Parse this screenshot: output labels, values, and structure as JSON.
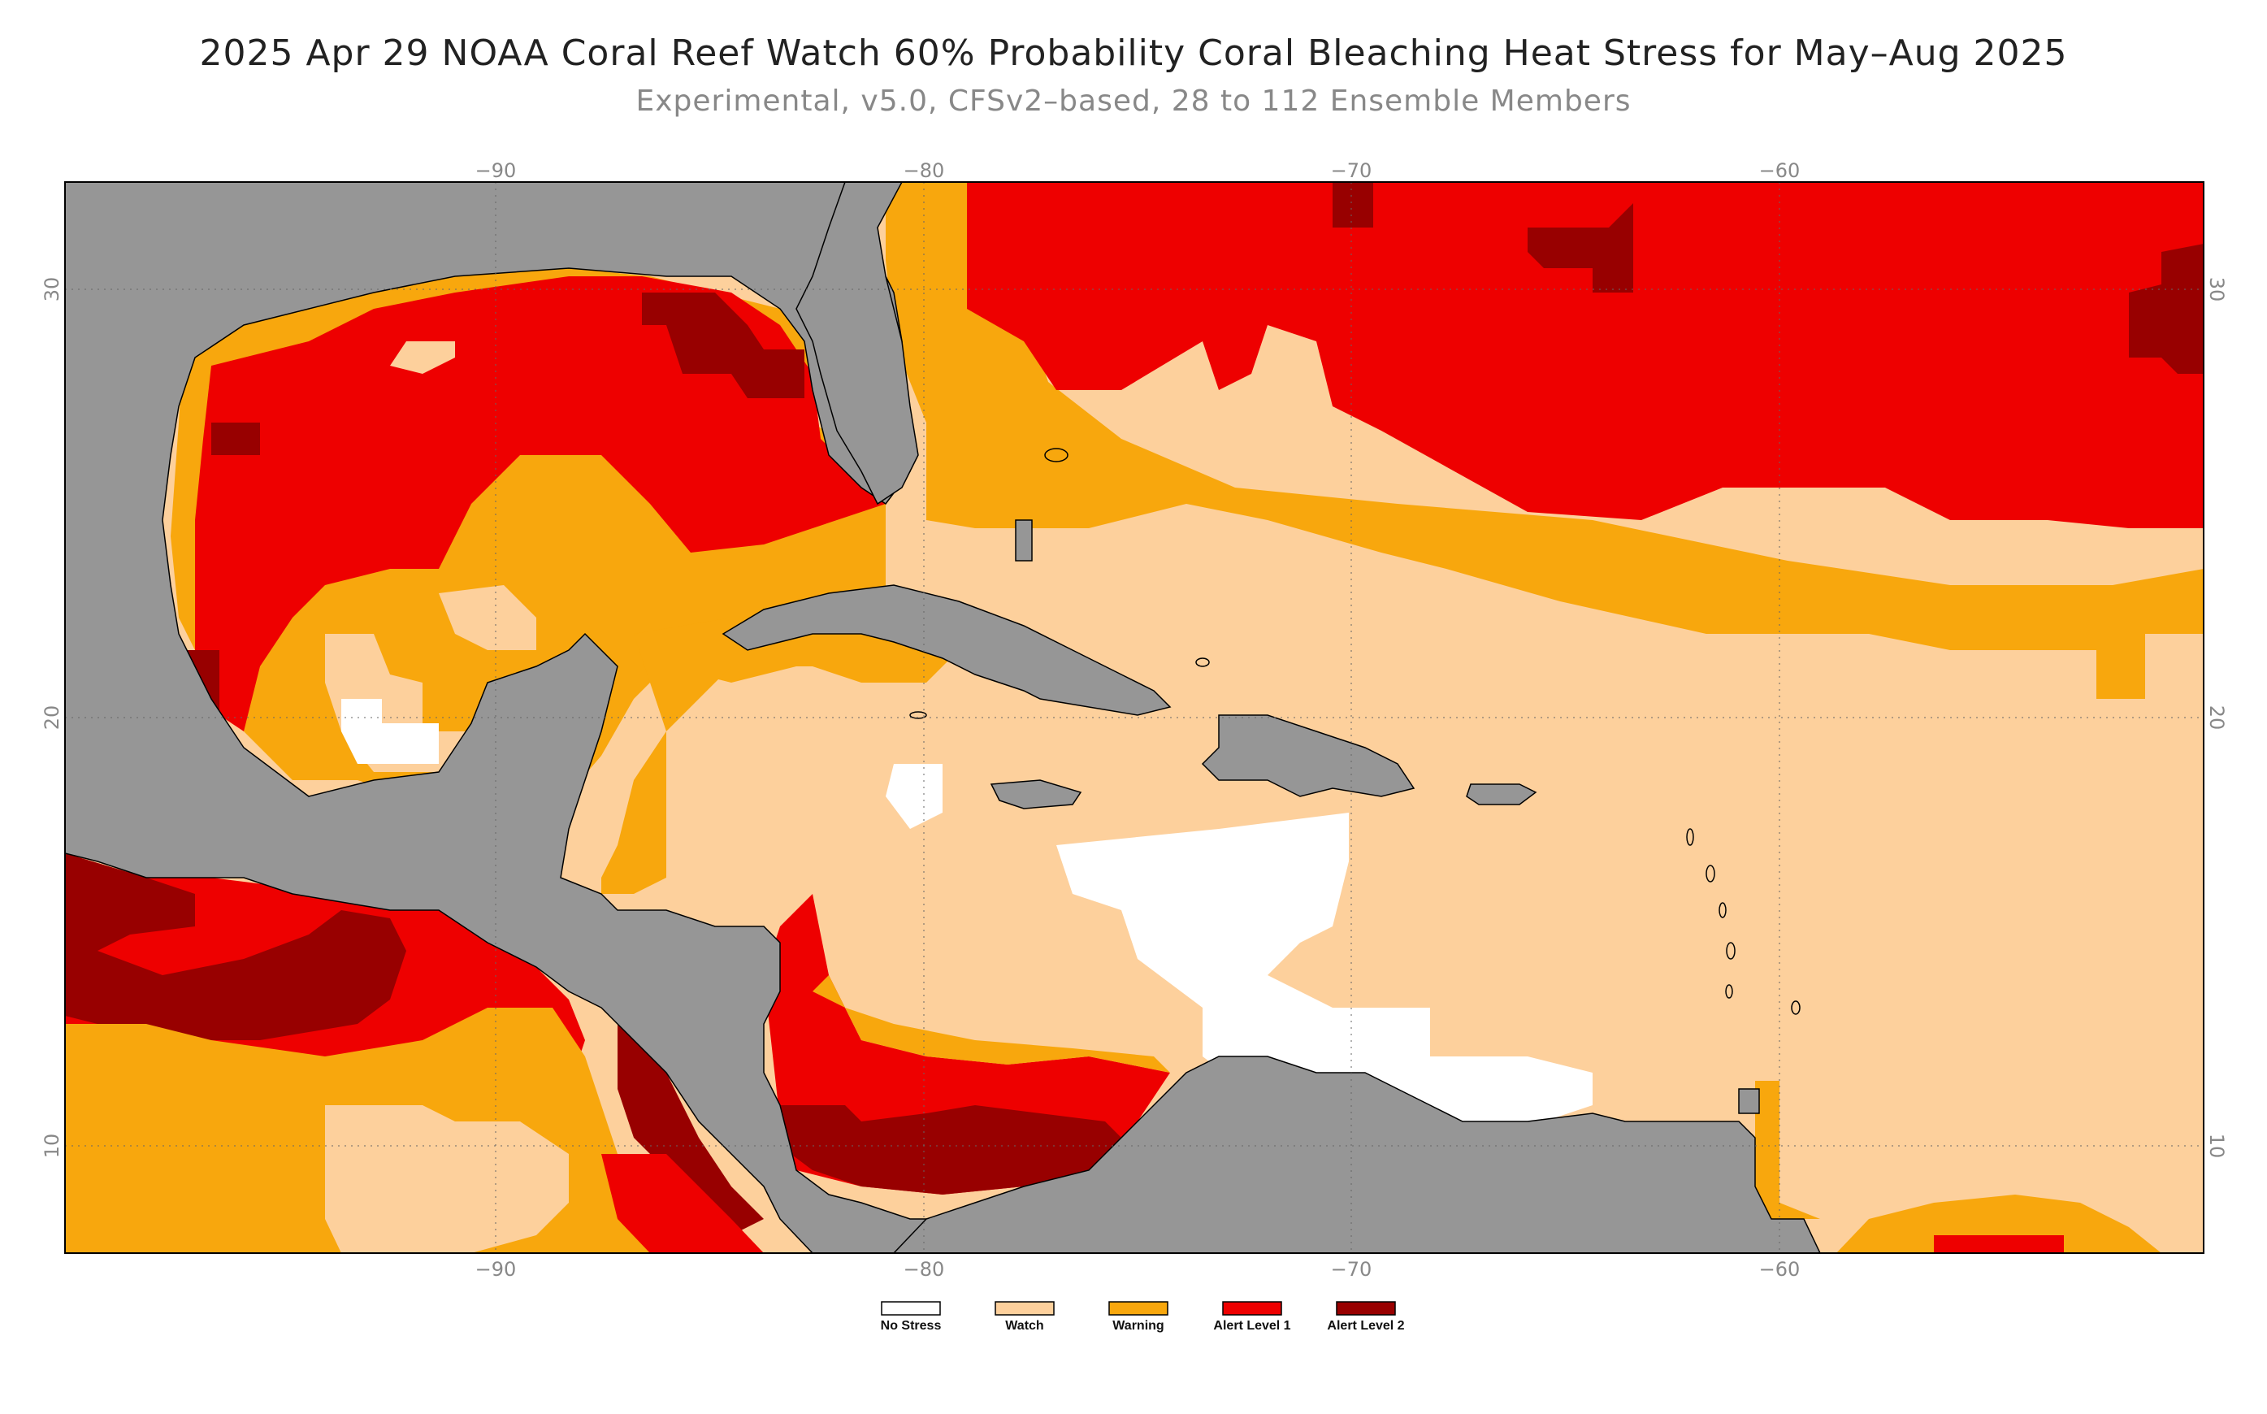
{
  "title": "2025 Apr 29 NOAA Coral Reef Watch 60% Probability Coral Bleaching Heat Stress for May–Aug 2025",
  "subtitle": "Experimental, v5.0, CFSv2–based, 28 to 112 Ensemble Members",
  "axes": {
    "lon_ticks": [
      "−90",
      "−80",
      "−70",
      "−60"
    ],
    "lat_ticks": [
      "30",
      "20",
      "10"
    ],
    "lon_range": [
      -100,
      -50
    ],
    "lat_range": [
      7.5,
      32.5
    ]
  },
  "colors": {
    "no_stress": "#ffffff",
    "watch": "#fdd09c",
    "warning": "#f8a70d",
    "alert1": "#ee0000",
    "alert2": "#980000",
    "land": "#969696"
  },
  "legend": [
    {
      "label": "No Stress",
      "color": "#ffffff"
    },
    {
      "label": "Watch",
      "color": "#fdd09c"
    },
    {
      "label": "Warning",
      "color": "#f8a70d"
    },
    {
      "label": "Alert Level 1",
      "color": "#ee0000"
    },
    {
      "label": "Alert Level 2",
      "color": "#980000"
    }
  ]
}
